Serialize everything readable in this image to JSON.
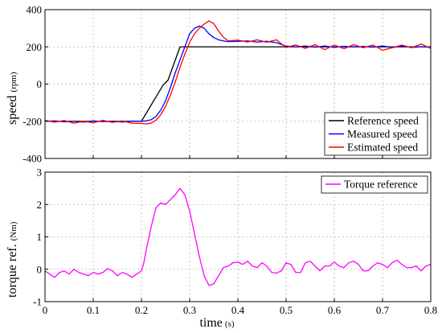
{
  "chart_data": [
    {
      "type": "line",
      "ylabel": "speed",
      "yunit": "(rpm)",
      "xlabel": "",
      "xlim": [
        0,
        0.8
      ],
      "ylim": [
        -400,
        400
      ],
      "xticks": [
        "0",
        "0.1",
        "0.2",
        "0.3",
        "0.4",
        "0.5",
        "0.6",
        "0.7",
        "0.8"
      ],
      "yticks": [
        "-400",
        "-200",
        "0",
        "200",
        "400"
      ],
      "grid": true,
      "legend_position": "bottom-right",
      "series": [
        {
          "name": "Reference speed",
          "color": "#000000",
          "x": [
            0,
            0.2,
            0.245,
            0.255,
            0.28,
            0.8
          ],
          "y": [
            -200,
            -200,
            -5,
            20,
            200,
            200
          ]
        },
        {
          "name": "Measured speed",
          "color": "#0000ff",
          "x": [
            0,
            0.02,
            0.04,
            0.06,
            0.08,
            0.1,
            0.12,
            0.14,
            0.16,
            0.18,
            0.2,
            0.21,
            0.22,
            0.23,
            0.24,
            0.25,
            0.26,
            0.27,
            0.28,
            0.29,
            0.3,
            0.31,
            0.32,
            0.33,
            0.34,
            0.35,
            0.36,
            0.37,
            0.38,
            0.4,
            0.42,
            0.44,
            0.46,
            0.48,
            0.5,
            0.52,
            0.54,
            0.56,
            0.58,
            0.6,
            0.62,
            0.64,
            0.66,
            0.68,
            0.7,
            0.72,
            0.74,
            0.76,
            0.78,
            0.8
          ],
          "y": [
            -200,
            -198,
            -203,
            -200,
            -205,
            -198,
            -202,
            -200,
            -204,
            -199,
            -200,
            -198,
            -192,
            -175,
            -140,
            -90,
            -20,
            60,
            130,
            200,
            270,
            300,
            312,
            300,
            270,
            250,
            238,
            232,
            228,
            230,
            232,
            226,
            230,
            222,
            204,
            200,
            205,
            198,
            205,
            197,
            203,
            199,
            202,
            198,
            205,
            196,
            204,
            197,
            200,
            198
          ]
        },
        {
          "name": "Estimated speed",
          "color": "#ff0000",
          "x": [
            0,
            0.02,
            0.04,
            0.06,
            0.08,
            0.1,
            0.12,
            0.14,
            0.16,
            0.18,
            0.2,
            0.21,
            0.22,
            0.23,
            0.24,
            0.25,
            0.26,
            0.27,
            0.28,
            0.29,
            0.3,
            0.31,
            0.32,
            0.33,
            0.34,
            0.35,
            0.36,
            0.37,
            0.38,
            0.4,
            0.42,
            0.44,
            0.46,
            0.48,
            0.5,
            0.52,
            0.54,
            0.56,
            0.58,
            0.6,
            0.62,
            0.64,
            0.66,
            0.68,
            0.7,
            0.72,
            0.74,
            0.76,
            0.78,
            0.8
          ],
          "y": [
            -195,
            -205,
            -196,
            -210,
            -200,
            -208,
            -195,
            -206,
            -198,
            -210,
            -212,
            -214,
            -210,
            -195,
            -165,
            -120,
            -60,
            10,
            90,
            160,
            225,
            270,
            300,
            322,
            340,
            325,
            285,
            252,
            232,
            236,
            226,
            238,
            225,
            238,
            196,
            210,
            192,
            212,
            185,
            210,
            190,
            212,
            195,
            210,
            182,
            195,
            210,
            195,
            215,
            192
          ]
        }
      ]
    },
    {
      "type": "line",
      "ylabel": "torque ref.",
      "yunit": "(Nm)",
      "xlabel": "time",
      "xunit": "(s)",
      "xlim": [
        0,
        0.8
      ],
      "ylim": [
        -1,
        3
      ],
      "xticks": [
        "0",
        "0.1",
        "0.2",
        "0.3",
        "0.4",
        "0.5",
        "0.6",
        "0.7",
        "0.8"
      ],
      "yticks": [
        "-1",
        "0",
        "1",
        "2",
        "3"
      ],
      "grid": true,
      "legend_position": "top-right",
      "series": [
        {
          "name": "Torque reference",
          "color": "#ff00ff",
          "x": [
            0,
            0.01,
            0.02,
            0.03,
            0.04,
            0.05,
            0.06,
            0.07,
            0.08,
            0.09,
            0.1,
            0.11,
            0.12,
            0.13,
            0.14,
            0.15,
            0.16,
            0.17,
            0.18,
            0.19,
            0.2,
            0.205,
            0.21,
            0.22,
            0.23,
            0.24,
            0.25,
            0.26,
            0.27,
            0.28,
            0.29,
            0.3,
            0.31,
            0.32,
            0.33,
            0.34,
            0.35,
            0.36,
            0.37,
            0.38,
            0.39,
            0.4,
            0.41,
            0.42,
            0.43,
            0.44,
            0.45,
            0.46,
            0.47,
            0.48,
            0.49,
            0.5,
            0.51,
            0.52,
            0.53,
            0.54,
            0.55,
            0.56,
            0.57,
            0.58,
            0.59,
            0.6,
            0.61,
            0.62,
            0.63,
            0.64,
            0.65,
            0.66,
            0.67,
            0.68,
            0.69,
            0.7,
            0.71,
            0.72,
            0.73,
            0.74,
            0.75,
            0.76,
            0.77,
            0.78,
            0.79,
            0.8
          ],
          "y": [
            -0.05,
            -0.15,
            -0.25,
            -0.1,
            -0.05,
            -0.15,
            0.0,
            -0.1,
            -0.15,
            -0.2,
            -0.1,
            -0.15,
            -0.1,
            0.02,
            -0.05,
            -0.2,
            -0.1,
            -0.15,
            -0.25,
            -0.15,
            -0.05,
            0.2,
            0.6,
            1.3,
            1.9,
            2.05,
            2.0,
            2.15,
            2.3,
            2.5,
            2.3,
            1.8,
            1.1,
            0.4,
            -0.2,
            -0.5,
            -0.45,
            -0.2,
            0.05,
            0.1,
            0.2,
            0.22,
            0.15,
            0.25,
            0.1,
            0.05,
            0.2,
            0.1,
            -0.1,
            -0.12,
            -0.05,
            0.2,
            0.15,
            -0.1,
            -0.1,
            0.2,
            0.25,
            0.1,
            -0.05,
            0.1,
            0.1,
            0.22,
            0.1,
            0.05,
            0.2,
            0.25,
            0.15,
            -0.05,
            -0.05,
            0.1,
            0.2,
            0.15,
            0.05,
            0.2,
            0.28,
            0.15,
            0.05,
            0.05,
            0.1,
            -0.05,
            0.1,
            0.15
          ]
        }
      ]
    }
  ]
}
